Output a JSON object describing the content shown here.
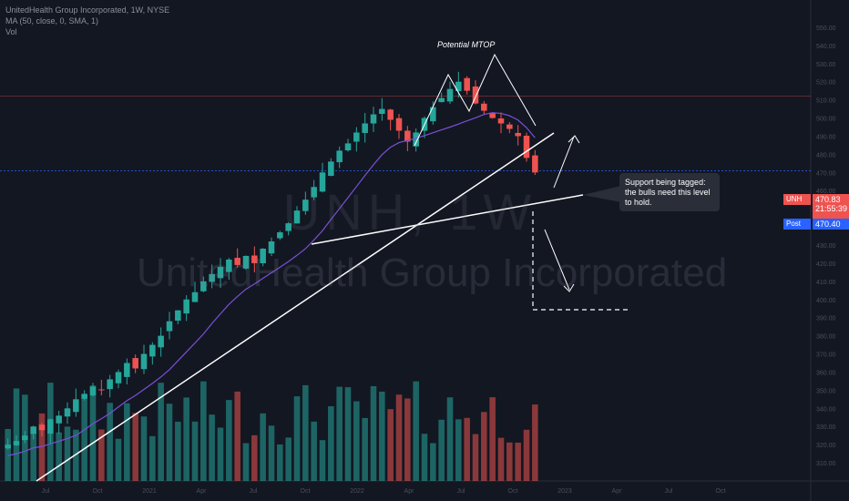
{
  "header": {
    "title": "UnitedHealth Group Incorporated, 1W, NYSE",
    "indicator_1": "MA (50, close, 0, SMA, 1)",
    "indicator_2": "Vol"
  },
  "watermark": {
    "symbol": "UNH, 1W",
    "name": "UnitedHealth Group Incorporated"
  },
  "annotations": {
    "pattern_label": "Potential MTOP",
    "callout_text": "Support being tagged: the bulls need this level to hold."
  },
  "price_tags": {
    "symbol": "UNH",
    "price": "470.83",
    "countdown": "21:55:39",
    "post_label": "Post",
    "post_price": "470.40"
  },
  "colors": {
    "background": "#131722",
    "up": "#26a69a",
    "down": "#ef5350",
    "ma": "#7b4fd6",
    "trendline": "#ffffff",
    "post_badge": "#2962ff"
  },
  "chart_data": {
    "type": "candlestick",
    "timeframe": "1W",
    "y_axis_range": [
      300,
      560
    ],
    "y_ticks": [
      310,
      320,
      330,
      340,
      350,
      360,
      370,
      380,
      390,
      400,
      410,
      420,
      430,
      440,
      450,
      460,
      470,
      480,
      490,
      500,
      510,
      520,
      530,
      540,
      550
    ],
    "x_ticks": [
      "Jul",
      "Oct",
      "2021",
      "Apr",
      "Jul",
      "Oct",
      "2022",
      "Apr",
      "Jul",
      "Oct",
      "2023",
      "Apr",
      "Jul",
      "Oct"
    ],
    "close_series_approx": [
      320,
      322,
      325,
      330,
      328,
      334,
      336,
      340,
      345,
      348,
      352,
      350,
      356,
      360,
      365,
      362,
      370,
      375,
      380,
      388,
      394,
      400,
      404,
      410,
      414,
      418,
      422,
      419,
      424,
      420,
      428,
      432,
      437,
      442,
      449,
      455,
      462,
      470,
      476,
      482,
      486,
      492,
      497,
      502,
      505,
      499,
      493,
      487,
      492,
      500,
      506,
      511,
      516,
      520,
      515,
      508,
      504,
      500,
      497,
      494,
      490,
      478,
      470
    ],
    "ma50_approx_end": 488,
    "last_price": 470.83
  }
}
